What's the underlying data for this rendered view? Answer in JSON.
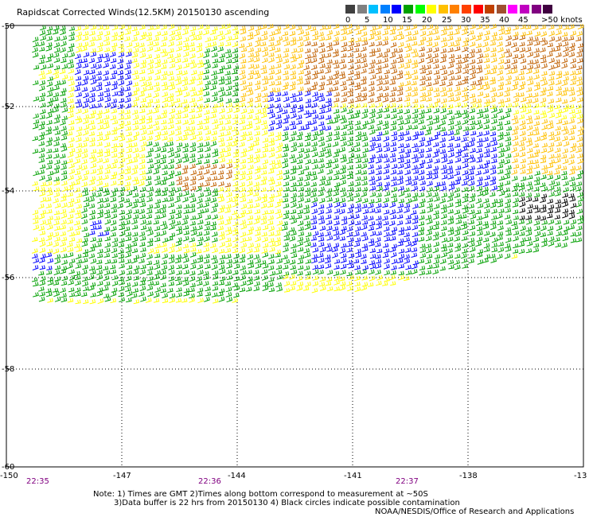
{
  "title": "Rapidscat Corrected Winds(12.5KM) 20150130 ascending",
  "scale": {
    "swatches": [
      "#404040",
      "#808080",
      "#00c0ff",
      "#0080ff",
      "#0000ff",
      "#00a000",
      "#00ff00",
      "#ffff00",
      "#ffc000",
      "#ff8000",
      "#ff4000",
      "#ff0000",
      "#c04000",
      "#a05030",
      "#ff00ff",
      "#c000c0",
      "#800080",
      "#400040"
    ],
    "labels": [
      "0",
      "5",
      "10",
      "15",
      "20",
      "25",
      "30",
      "35",
      "40",
      "45",
      ">50 knots"
    ]
  },
  "map": {
    "lat_labels": [
      "-50",
      "-52",
      "-54",
      "-56",
      "-58",
      "-60"
    ],
    "lon_labels": [
      "-150",
      "-147",
      "-144",
      "-141",
      "-138",
      "-13"
    ],
    "time_labels": [
      "22:35",
      "22:36",
      "22:37"
    ],
    "wind_colors": {
      "calm": "#000000",
      "light": "#0000ff",
      "moderate": "#00a000",
      "fresh": "#ffff00",
      "strong": "#ffc000",
      "gale": "#c06000"
    }
  },
  "notes": [
    "Note: 1) Times are GMT 2)Times along bottom correspond to measurement at ~50S",
    "3)Data buffer is 22 hrs from 20150130 4) Black circles indicate possible contamination"
  ],
  "credit": "NOAA/NESDIS/Office of Research and Applications"
}
